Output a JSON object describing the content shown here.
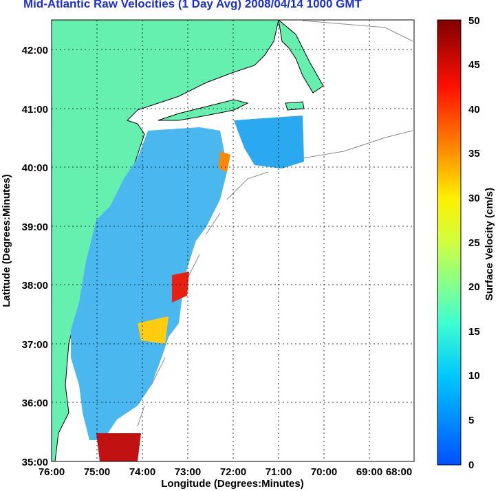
{
  "title": "Mid-Atlantic Raw Velocities (1 Day Avg) 2008/04/14 1000 GMT",
  "x_axis": {
    "label": "Longitude (Degrees:Minutes)",
    "ticks": [
      "76:00",
      "75:00",
      "74:00",
      "73:00",
      "72:00",
      "71:00",
      "70:00",
      "69:00",
      "68:00"
    ]
  },
  "y_axis": {
    "label": "Latitude (Degrees:Minutes)",
    "ticks": [
      "35:00",
      "36:00",
      "37:00",
      "38:00",
      "39:00",
      "40:00",
      "41:00",
      "42:00"
    ]
  },
  "colorbar": {
    "label": "Surface Velocity (cm/s)",
    "ticks": [
      "0",
      "5",
      "10",
      "15",
      "20",
      "25",
      "30",
      "35",
      "40",
      "45",
      "50"
    ],
    "colors": [
      "#0050ff",
      "#00c8ff",
      "#40ffd0",
      "#fff000",
      "#ff8000",
      "#ff1000",
      "#800000"
    ]
  },
  "map_colors": {
    "land": "#66f0b0",
    "coast": "#000000",
    "bathymetry": "#8a8a8a",
    "grid": "#000000"
  }
}
